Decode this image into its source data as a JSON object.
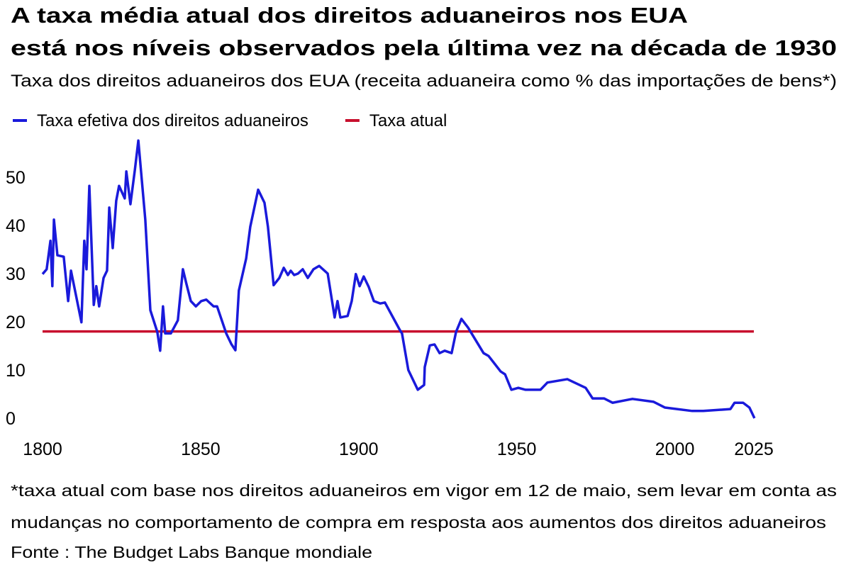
{
  "chart_data": {
    "type": "line",
    "title": "A taxa média atual dos direitos aduaneiros nos EUA",
    "title_line2": "está nos níveis observados pela última vez na década de 1930",
    "subtitle": "Taxa dos direitos aduaneiros dos EUA (receita aduaneira como % das importações de bens*)",
    "footnote": "*taxa atual com base nos direitos aduaneiros em vigor em 12 de maio, sem levar em conta as",
    "footnote_line2": "mudanças no comportamento de compra em resposta aos aumentos dos direitos aduaneiros",
    "source": "Fonte : The Budget Labs Banque mondiale",
    "xlim": [
      1800,
      2025
    ],
    "ylim": [
      0,
      58
    ],
    "xticks": [
      1800,
      1850,
      1900,
      1950,
      2000,
      2025
    ],
    "yticks": [
      0,
      10,
      20,
      30,
      40,
      50
    ],
    "legend": "top-left",
    "series": [
      {
        "name": "Taxa efetiva dos direitos aduaneiros",
        "color": "#1a1adb",
        "x": [
          1800,
          1801.3,
          1802.5,
          1803.1,
          1803.6,
          1804.7,
          1806.7,
          1808.1,
          1809,
          1812.3,
          1813.2,
          1813.9,
          1814.8,
          1816.2,
          1817,
          1817.9,
          1819.3,
          1820.4,
          1821.1,
          1822.2,
          1823.3,
          1824.2,
          1826,
          1826.5,
          1827.8,
          1829.2,
          1830.3,
          1832.5,
          1834.1,
          1836.3,
          1837.2,
          1838.1,
          1838.8,
          1840.6,
          1842.8,
          1844.4,
          1845.5,
          1846.9,
          1848.5,
          1850.2,
          1851.8,
          1854.1,
          1855.2,
          1858.1,
          1859.7,
          1861,
          1862.1,
          1864.4,
          1865.7,
          1868.2,
          1870.2,
          1871.3,
          1873.1,
          1874.9,
          1876.3,
          1877.6,
          1878.5,
          1879.6,
          1880.8,
          1882.3,
          1883.9,
          1885.7,
          1887.5,
          1890.2,
          1892.4,
          1893.3,
          1894.2,
          1896.5,
          1897.8,
          1899.1,
          1900.3,
          1901.6,
          1903.2,
          1904.8,
          1906.8,
          1908.3,
          1913.1,
          1913.7,
          1915.7,
          1918.7,
          1920.7,
          1920.9,
          1922.5,
          1924,
          1925.6,
          1927.2,
          1929.4,
          1930.8,
          1932.5,
          1934.6,
          1939.5,
          1941.1,
          1944.9,
          1946.3,
          1948.3,
          1950.5,
          1952.8,
          1957.5,
          1959.7,
          1966,
          1971.8,
          1974,
          1977.6,
          1980.3,
          1986.6,
          1993.3,
          1996.9,
          2005.5,
          2009,
          2017.6,
          2018.9,
          2021.6,
          2023.6,
          2025.2
        ],
        "values": [
          29.9,
          30.9,
          36.8,
          27.4,
          41.2,
          33.8,
          33.5,
          24.3,
          30.6,
          19.9,
          36.8,
          30.9,
          48.2,
          23.5,
          27.4,
          23.2,
          29.1,
          30.6,
          43.7,
          35.3,
          45.1,
          48.2,
          45.6,
          51.2,
          44.4,
          51.5,
          57.6,
          41.2,
          22.4,
          17.9,
          14,
          23.2,
          17.6,
          17.6,
          20.3,
          30.9,
          27.9,
          24.3,
          23.2,
          24.3,
          24.6,
          23.2,
          23.2,
          17.6,
          15.4,
          14.1,
          26.5,
          33.1,
          39.7,
          47.4,
          44.7,
          39.7,
          27.6,
          29.1,
          31.2,
          29.7,
          30.6,
          29.7,
          30,
          30.9,
          29.1,
          30.9,
          31.6,
          30,
          20.9,
          24.3,
          20.9,
          21.2,
          24.3,
          29.9,
          27.4,
          29.4,
          27.2,
          24.3,
          23.8,
          24,
          18.2,
          17.6,
          10,
          5.9,
          6.9,
          10.6,
          15.1,
          15.3,
          13.5,
          14,
          13.5,
          17.9,
          20.6,
          18.8,
          13.5,
          12.9,
          9.7,
          9.1,
          5.9,
          6.3,
          5.9,
          5.9,
          7.4,
          8.1,
          6.3,
          4.1,
          4.1,
          3.2,
          4,
          3.4,
          2.2,
          1.5,
          1.5,
          1.9,
          3.2,
          3.2,
          2.2,
          0
        ]
      },
      {
        "name": "Taxa atual",
        "color": "#c8102e",
        "x": [
          1800,
          2025
        ],
        "values": [
          18,
          18
        ]
      }
    ]
  }
}
